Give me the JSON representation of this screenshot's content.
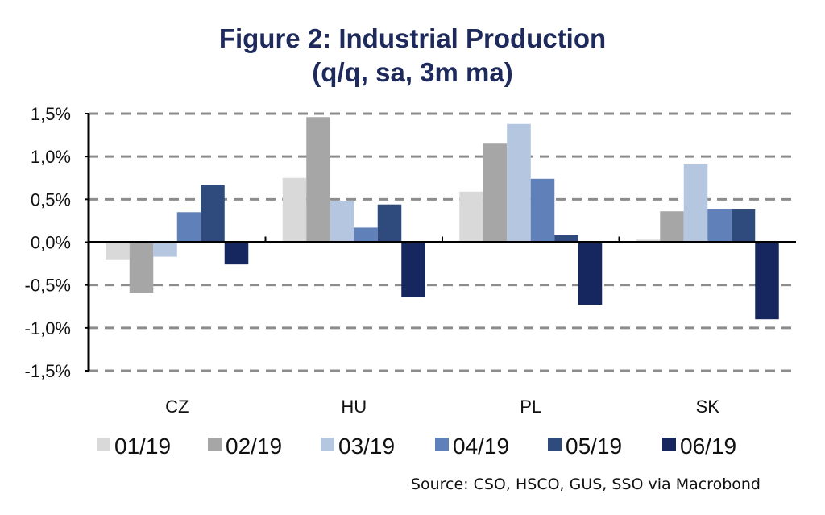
{
  "chart_data": {
    "type": "bar",
    "title": "Figure 2: Industrial Production",
    "subtitle": "(q/q, sa, 3m ma)",
    "xlabel": "",
    "ylabel": "",
    "categories": [
      "CZ",
      "HU",
      "PL",
      "SK"
    ],
    "ylim": [
      -1.5,
      1.5
    ],
    "yticks": [
      1.5,
      1.0,
      0.5,
      0.0,
      -0.5,
      -1.0,
      -1.5
    ],
    "ytick_labels": [
      "1,5%",
      "1,0%",
      "0,5%",
      "0,0%",
      "-0,5%",
      "-1,0%",
      "-1,5%"
    ],
    "grid": true,
    "legend_position": "bottom",
    "series": [
      {
        "name": "01/19",
        "color": "#d9d9d9",
        "values": [
          -0.2,
          0.75,
          0.59,
          0.03
        ]
      },
      {
        "name": "02/19",
        "color": "#a6a6a6",
        "values": [
          -0.59,
          1.46,
          1.15,
          0.36
        ]
      },
      {
        "name": "03/19",
        "color": "#b4c6e0",
        "values": [
          -0.17,
          0.48,
          1.38,
          0.91
        ]
      },
      {
        "name": "04/19",
        "color": "#5f80b8",
        "values": [
          0.35,
          0.17,
          0.74,
          0.39
        ]
      },
      {
        "name": "05/19",
        "color": "#2f4a7c",
        "values": [
          0.67,
          0.44,
          0.08,
          0.39
        ]
      },
      {
        "name": "06/19",
        "color": "#16265e",
        "values": [
          -0.26,
          -0.64,
          -0.73,
          -0.9
        ]
      }
    ],
    "source": "Source: CSO, HSCO, GUS, SSO via Macrobond"
  }
}
